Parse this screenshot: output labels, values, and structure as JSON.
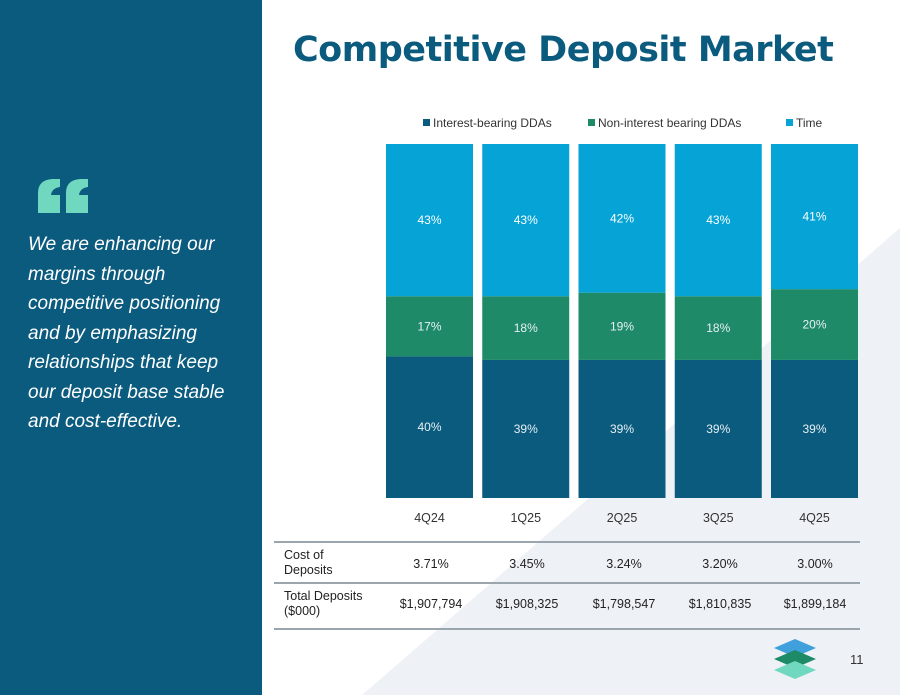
{
  "title": "Competitive Deposit Market",
  "quote": "We are enhancing our margins through competitive positioning and by emphasizing relationships that keep our deposit base stable and cost-effective.",
  "page_number": "11",
  "colors": {
    "sidebar": "#0b5b7e",
    "interest_bearing": "#0b5b7e",
    "non_interest": "#1e8a68",
    "time": "#06a3d6",
    "quote_mark": "#6fd8bf"
  },
  "chart_data": {
    "type": "bar",
    "stacked": true,
    "percent_scale": true,
    "categories": [
      "4Q24",
      "1Q25",
      "2Q25",
      "3Q25",
      "4Q25"
    ],
    "series": [
      {
        "name": "Interest-bearing DDAs",
        "values": [
          40,
          39,
          39,
          39,
          39
        ],
        "labels": [
          "40%",
          "39%",
          "39%",
          "39%",
          "39%"
        ]
      },
      {
        "name": "Non-interest bearing DDAs",
        "values": [
          17,
          18,
          19,
          18,
          20
        ],
        "labels": [
          "17%",
          "18%",
          "19%",
          "18%",
          "20%"
        ]
      },
      {
        "name": "Time",
        "values": [
          43,
          43,
          42,
          43,
          41
        ],
        "labels": [
          "43%",
          "43%",
          "42%",
          "43%",
          "41%"
        ]
      }
    ],
    "legend_position": "top",
    "ylim": [
      0,
      100
    ]
  },
  "table": {
    "rows": [
      {
        "label": [
          "Cost of",
          "Deposits"
        ],
        "values": [
          "3.71%",
          "3.45%",
          "3.24%",
          "3.20%",
          "3.00%"
        ]
      },
      {
        "label": [
          "Total Deposits",
          "($000)"
        ],
        "values": [
          "$1,907,794",
          "$1,908,325",
          "$1,798,547",
          "$1,810,835",
          "$1,899,184"
        ]
      }
    ]
  }
}
